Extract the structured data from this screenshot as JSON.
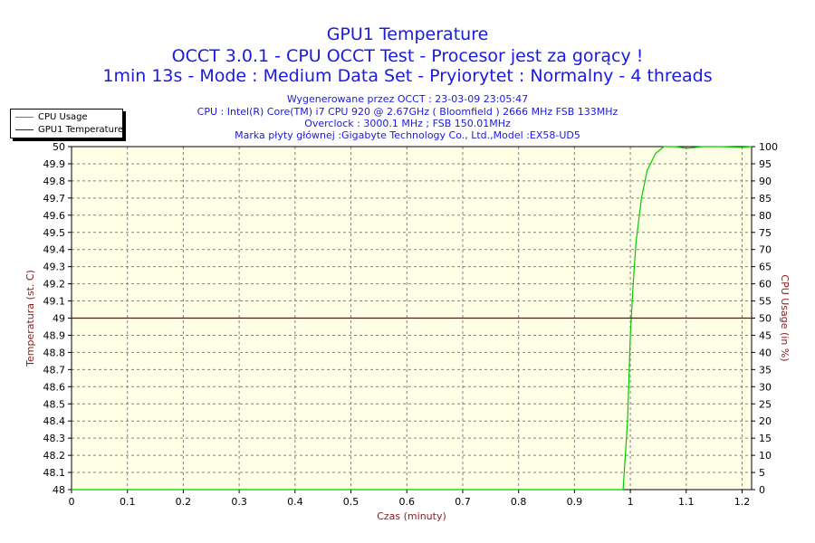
{
  "header": {
    "title": "GPU1 Temperature",
    "subtitle1": "OCCT 3.0.1 - CPU OCCT Test - Procesor jest za gorący !",
    "subtitle2": "1min 13s - Mode : Medium Data Set - Pryiorytet : Normalny - 4 threads",
    "info": [
      "Wygenerowane przez OCCT : 23-03-09 23:05:47",
      "CPU : Intel(R) Core(TM) i7 CPU 920 @ 2.67GHz ( Bloomfield ) 2666 MHz FSB 133MHz",
      "Overclock : 3000.1 MHz ; FSB 150.01MHz",
      "Marka płyty głównej :Gigabyte Technology Co., Ltd.,Model :EX58-UD5"
    ]
  },
  "colors": {
    "plot_bg": "#ffffe6",
    "grid": "#808080",
    "axis_text": "#000000",
    "axis_label": "#8b1a1a",
    "cpu_usage": "#00cc00",
    "gpu_temp": "#8b0000"
  },
  "chart_data": {
    "type": "line",
    "xlabel": "Czas (minuty)",
    "ylabel_left": "Temperatura (st. C)",
    "ylabel_right": "CPU Usage (in %)",
    "xlim": [
      0,
      1.217
    ],
    "ylim_left": [
      48,
      50
    ],
    "ylim_right": [
      0,
      100
    ],
    "x_ticks": [
      "0",
      "0.1",
      "0.2",
      "0.3",
      "0.4",
      "0.5",
      "0.6",
      "0.7",
      "0.8",
      "0.9",
      "1",
      "1.1",
      "1.2"
    ],
    "y_left_ticks": [
      "50",
      "49.9",
      "49.8",
      "49.7",
      "49.6",
      "49.5",
      "49.4",
      "49.3",
      "49.2",
      "49.1",
      "49",
      "48.9",
      "48.8",
      "48.7",
      "48.6",
      "48.5",
      "48.4",
      "48.3",
      "48.2",
      "48.1",
      "48"
    ],
    "y_right_ticks": [
      "100",
      "95",
      "90",
      "85",
      "80",
      "75",
      "70",
      "65",
      "60",
      "55",
      "50",
      "45",
      "40",
      "35",
      "30",
      "25",
      "20",
      "15",
      "10",
      "5",
      "0"
    ],
    "grid": true,
    "legend_position": "top-left",
    "series": [
      {
        "name": "CPU Usage",
        "axis": "right",
        "x": [
          0.0,
          0.2,
          0.4,
          0.6,
          0.8,
          0.95,
          0.987,
          0.995,
          1.0,
          1.005,
          1.01,
          1.02,
          1.03,
          1.045,
          1.06,
          1.08,
          1.1,
          1.13,
          1.16,
          1.2,
          1.217
        ],
        "y": [
          0,
          0,
          0,
          0,
          0,
          0,
          0,
          20,
          45,
          60,
          72,
          85,
          93,
          98,
          100,
          100,
          99.5,
          100,
          100,
          99.8,
          100
        ]
      },
      {
        "name": "GPU1 Temperature",
        "axis": "left",
        "x": [
          0.0,
          0.05,
          0.1,
          0.15,
          0.2,
          0.25,
          0.3,
          0.35,
          0.4,
          0.45,
          0.5,
          0.55,
          0.6,
          0.65,
          0.7,
          0.75,
          0.8,
          0.85,
          0.9,
          0.95,
          1.0,
          1.05,
          1.1,
          1.15,
          1.217
        ],
        "y": [
          49,
          49,
          49,
          49,
          49,
          49,
          49,
          49,
          49,
          49,
          49,
          49,
          49,
          49,
          49,
          49,
          49,
          49,
          49,
          49,
          49,
          49,
          49,
          49,
          49
        ]
      }
    ]
  }
}
